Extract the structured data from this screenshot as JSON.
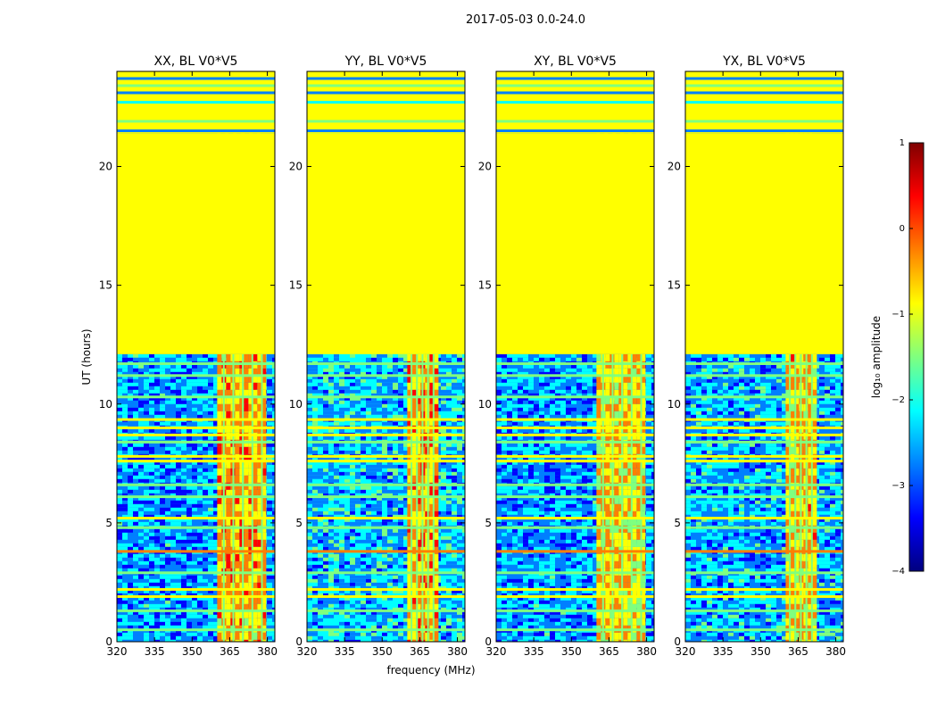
{
  "figure": {
    "suptitle": "2017-05-03 0.0-24.0",
    "xlabel": "frequency (MHz)",
    "ylabel": "UT (hours)"
  },
  "colorbar": {
    "label": "log₁₀ amplitude",
    "ticks": [
      1,
      0,
      -1,
      -2,
      -3,
      -4
    ],
    "tick_labels": [
      "1",
      "0",
      "−1",
      "−2",
      "−3",
      "−4"
    ],
    "range": [
      -4,
      1
    ],
    "colormap": "jet",
    "colors": [
      "#00007f",
      "#0000ff",
      "#007fff",
      "#00ffff",
      "#7fff7f",
      "#ffff00",
      "#ff7f00",
      "#ff0000",
      "#7f0000"
    ]
  },
  "chart_data": {
    "type": "heatmap",
    "xlim": [
      320,
      383
    ],
    "ylim": [
      0,
      24
    ],
    "xticks": [
      320,
      335,
      350,
      365,
      380
    ],
    "xtick_labels": [
      "320",
      "335",
      "350",
      "365",
      "380"
    ],
    "yticks": [
      0,
      5,
      10,
      15,
      20
    ],
    "ytick_labels": [
      "0",
      "5",
      "10",
      "15",
      "20"
    ],
    "panels": [
      {
        "title": "XX, BL V0*V5",
        "background_level": -2.6,
        "bright_band_mhz": [
          360,
          379
        ],
        "bright_band_level": -0.5
      },
      {
        "title": "YY, BL V0*V5",
        "background_level": -2.4,
        "bright_band_mhz": [
          360,
          371
        ],
        "bright_band_level": -0.4
      },
      {
        "title": "XY, BL V0*V5",
        "background_level": -2.6,
        "bright_band_mhz": [
          360,
          379
        ],
        "bright_band_level": -0.7
      },
      {
        "title": "YX, BL V0*V5",
        "background_level": -2.5,
        "bright_band_mhz": [
          360,
          371
        ],
        "bright_band_level": -0.6
      }
    ],
    "no_data_hours": [
      12.1,
      21.4
    ],
    "no_data_level": -1.0,
    "sparse_data_hours": [
      21.4,
      24.0
    ],
    "flagged_rows_hours": [
      {
        "t": 0.5,
        "level": -1.4
      },
      {
        "t": 1.3,
        "level": -1.8
      },
      {
        "t": 1.9,
        "level": -0.6
      },
      {
        "t": 2.2,
        "level": -0.6
      },
      {
        "t": 2.9,
        "level": -1.6
      },
      {
        "t": 3.8,
        "level": 0.0
      },
      {
        "t": 4.8,
        "level": -1.3
      },
      {
        "t": 5.2,
        "level": -0.8
      },
      {
        "t": 6.1,
        "level": -1.2
      },
      {
        "t": 6.6,
        "level": -1.5
      },
      {
        "t": 7.6,
        "level": -0.7
      },
      {
        "t": 7.8,
        "level": -0.9
      },
      {
        "t": 8.4,
        "level": -1.5
      },
      {
        "t": 8.7,
        "level": -0.6
      },
      {
        "t": 9.0,
        "level": -1.0
      },
      {
        "t": 9.35,
        "level": -0.8
      },
      {
        "t": 10.3,
        "level": -1.2
      },
      {
        "t": 11.2,
        "level": -1.8
      },
      {
        "t": 11.7,
        "level": -1.5
      },
      {
        "t": 21.5,
        "level": -2.8
      },
      {
        "t": 21.9,
        "level": -1.8
      },
      {
        "t": 22.7,
        "level": -2.0
      },
      {
        "t": 23.1,
        "level": -2.8
      },
      {
        "t": 23.4,
        "level": -1.5
      },
      {
        "t": 23.7,
        "level": -2.9
      }
    ]
  }
}
